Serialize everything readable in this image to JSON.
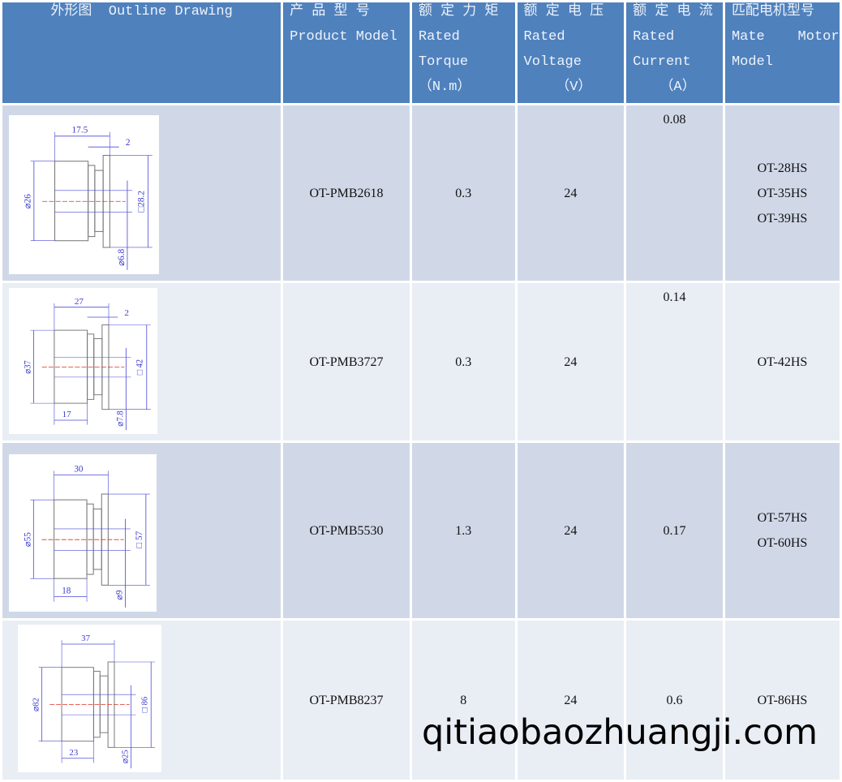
{
  "header": {
    "outline": "外形图  Outline Drawing",
    "model": [
      "产 品 型 号",
      "Product Model"
    ],
    "torque": [
      "额 定 力 矩",
      "Rated",
      "Torque",
      "（N.m）"
    ],
    "voltage": [
      "额 定 电 压",
      "Rated",
      "Voltage",
      "（V）"
    ],
    "current": [
      "额 定 电 流",
      "Rated",
      "Current",
      "（A）"
    ],
    "mate": [
      "匹配电机型号",
      "Mate    Motor",
      "Model"
    ]
  },
  "rows": [
    {
      "model": "OT-PMB2618",
      "torque": "0.3",
      "voltage": "24",
      "current": "0.08",
      "current_top": true,
      "mate": [
        "OT-28HS",
        "OT-35HS",
        "OT-39HS"
      ],
      "drawing": {
        "length": "17.5",
        "flange": "2",
        "step": "",
        "diameter": "⌀26",
        "square": "□28.2",
        "shaft": "⌀6.8"
      }
    },
    {
      "model": "OT-PMB3727",
      "torque": "0.3",
      "voltage": "24",
      "current": "0.14",
      "current_top": true,
      "mate": [
        "OT-42HS"
      ],
      "drawing": {
        "length": "27",
        "flange": "2",
        "step": "17",
        "diameter": "⌀37",
        "square": "□ 42",
        "shaft": "⌀7.8"
      }
    },
    {
      "model": "OT-PMB5530",
      "torque": "1.3",
      "voltage": "24",
      "current": "0.17",
      "current_top": false,
      "mate": [
        "OT-57HS",
        "OT-60HS"
      ],
      "drawing": {
        "length": "30",
        "flange": "",
        "step": "18",
        "diameter": "⌀55",
        "square": "□ 57",
        "shaft": "⌀9"
      }
    },
    {
      "model": "OT-PMB8237",
      "torque": "8",
      "voltage": "24",
      "current": "0.6",
      "current_top": false,
      "mate": [
        "OT-86HS"
      ],
      "drawing": {
        "length": "37",
        "flange": "",
        "step": "23",
        "diameter": "⌀82",
        "square": "□ 86",
        "shaft": "⌀25"
      }
    }
  ],
  "watermark": "qitiaobaozhuangji.com",
  "colors": {
    "header": "#4f81bd",
    "row_dark": "#d0d8e8",
    "row_light": "#e9edf4",
    "dimension": "#3a3ad0",
    "centerline": "#e03020"
  }
}
